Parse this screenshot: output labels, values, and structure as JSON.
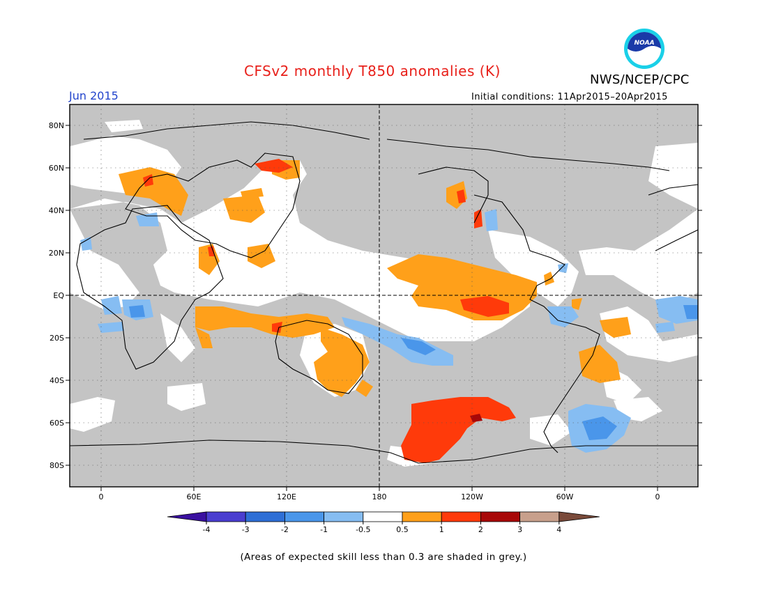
{
  "title": "CFSv2 monthly T850 anomalies (K)",
  "agency": "NWS/NCEP/CPC",
  "logo_text": "NOAA",
  "month": "Jun 2015",
  "initial_conditions": "Initial conditions: 11Apr2015–20Apr2015",
  "footnote": "(Areas of expected skill less than 0.3 are shaded in grey.)",
  "lat_labels": [
    "80N",
    "60N",
    "40N",
    "20N",
    "EQ",
    "20S",
    "40S",
    "60S",
    "80S"
  ],
  "lat_values": [
    80,
    60,
    40,
    20,
    0,
    -20,
    -40,
    -60,
    -80
  ],
  "lon_labels": [
    "0",
    "60E",
    "120E",
    "180",
    "120W",
    "60W",
    "0"
  ],
  "lon_values": [
    0,
    60,
    120,
    180,
    240,
    300,
    360
  ],
  "colorbar": {
    "tick_labels": [
      "-4",
      "-3",
      "-2",
      "-1",
      "-0.5",
      "0.5",
      "1",
      "2",
      "3",
      "4"
    ],
    "colors": [
      "#3a10a0",
      "#4a3ed0",
      "#2e6fd6",
      "#4a96ea",
      "#86bdf2",
      "#ffffff",
      "#ffa01a",
      "#ff3a0a",
      "#a80808",
      "#c8a08c",
      "#7a4a3a"
    ]
  },
  "colors": {
    "no_skill": "#c4c4c4",
    "neutral": "#ffffff",
    "warm_0_5_1": "#ffa01a",
    "warm_1_2": "#ff3a0a",
    "warm_2_3": "#a80808",
    "cool_m0_5_m1": "#86bdf2",
    "cool_m1_m2": "#4a96ea",
    "title": "#e8201a",
    "month": "#2244cc"
  }
}
